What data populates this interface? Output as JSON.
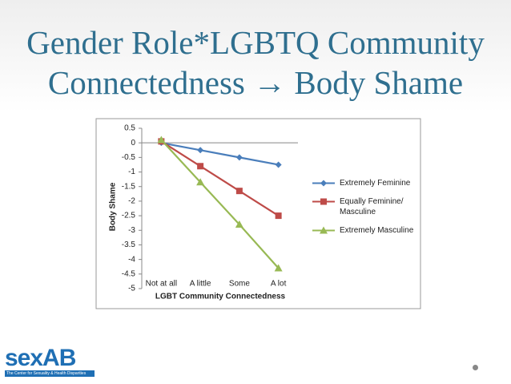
{
  "chart_data": {
    "type": "line",
    "title": "Gender Role*LGBTQ Community Connectedness → Body Shame",
    "x_label": "LGBT Community Connectedness",
    "y_label": "Body Shame",
    "categories": [
      "Not at all",
      "A little",
      "Some",
      "A lot"
    ],
    "series": [
      {
        "name": "Extremely Feminine",
        "color": "#4a7ebb",
        "marker": "diamond",
        "values": [
          0,
          -0.25,
          -0.5,
          -0.75
        ]
      },
      {
        "name": "Equally Feminine/ Masculine",
        "color": "#be4b48",
        "marker": "square",
        "values": [
          0.05,
          -0.8,
          -1.65,
          -2.5
        ]
      },
      {
        "name": "Extremely Masculine",
        "color": "#98b954",
        "marker": "triangle",
        "values": [
          0.1,
          -1.35,
          -2.8,
          -4.3
        ]
      }
    ],
    "ylim": [
      -5,
      0.5
    ],
    "yticks": [
      0.5,
      0,
      -0.5,
      -1,
      -1.5,
      -2,
      -2.5,
      -3,
      -3.5,
      -4,
      -4.5,
      -5
    ],
    "grid": false,
    "legend": "right"
  },
  "logo": {
    "name": "sexAB",
    "tagline": "The Center for Sexuality & Health Disparities"
  }
}
